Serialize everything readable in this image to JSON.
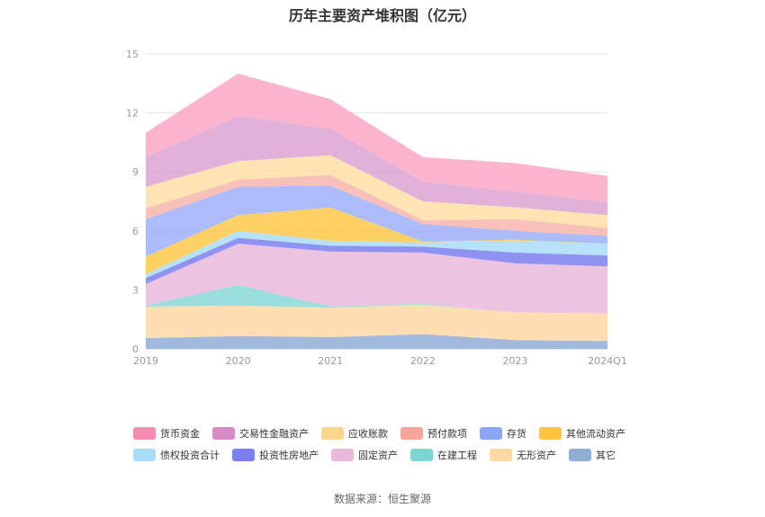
{
  "chart_data": {
    "type": "area",
    "title": "历年主要资产堆积图（亿元）",
    "source": "数据来源：恒生聚源",
    "categories": [
      "2019",
      "2020",
      "2021",
      "2022",
      "2023",
      "2024Q1"
    ],
    "y_ticks": [
      "0",
      "3",
      "6",
      "9",
      "12",
      "15"
    ],
    "ylim": [
      0,
      15
    ],
    "grid": true,
    "legend_position": "bottom",
    "stacked": true,
    "series": [
      {
        "name": "其它",
        "color": "#8fadd6",
        "values": [
          0.55,
          0.65,
          0.6,
          0.75,
          0.45,
          0.4
        ]
      },
      {
        "name": "无形资产",
        "color": "#ffd9a3",
        "values": [
          1.6,
          1.55,
          1.5,
          1.5,
          1.4,
          1.4
        ]
      },
      {
        "name": "在建工程",
        "color": "#8ad8d8",
        "values": [
          0.05,
          1.05,
          0.05,
          0.05,
          0.0,
          0.0
        ]
      },
      {
        "name": "固定资产",
        "color": "#e9b9dc",
        "values": [
          1.1,
          2.1,
          2.8,
          2.6,
          2.5,
          2.4
        ]
      },
      {
        "name": "投资性房地产",
        "color": "#7b7fef",
        "values": [
          0.3,
          0.3,
          0.3,
          0.3,
          0.55,
          0.55
        ]
      },
      {
        "name": "债权投资合计",
        "color": "#a8ddf7",
        "values": [
          0.2,
          0.35,
          0.25,
          0.2,
          0.6,
          0.6
        ]
      },
      {
        "name": "其他流动资产",
        "color": "#ffc94a",
        "values": [
          0.9,
          0.8,
          1.7,
          0.05,
          0.05,
          0.0
        ]
      },
      {
        "name": "存货",
        "color": "#9db0fa",
        "values": [
          1.9,
          1.45,
          1.1,
          0.9,
          0.45,
          0.4
        ]
      },
      {
        "name": "预付款项",
        "color": "#f7b5ad",
        "values": [
          0.55,
          0.35,
          0.55,
          0.2,
          0.6,
          0.4
        ]
      },
      {
        "name": "应收账款",
        "color": "#ffdfa6",
        "values": [
          1.1,
          0.95,
          1.0,
          0.95,
          0.6,
          0.65
        ]
      },
      {
        "name": "交易性金融资产",
        "color": "#dca3d2",
        "values": [
          1.5,
          2.3,
          1.35,
          1.0,
          0.8,
          0.65
        ]
      },
      {
        "name": "货币资金",
        "color": "#fca7c6",
        "values": [
          1.25,
          2.15,
          1.5,
          1.25,
          1.45,
          1.35
        ]
      }
    ],
    "legend_order": [
      "货币资金",
      "交易性金融资产",
      "应收账款",
      "预付款项",
      "存货",
      "其他流动资产",
      "债权投资合计",
      "投资性房地产",
      "固定资产",
      "在建工程",
      "无形资产",
      "其它"
    ],
    "legend_colors": [
      "#f78bb0",
      "#d68bc7",
      "#ffd48f",
      "#f6a59b",
      "#8ca6f7",
      "#ffc43d",
      "#a8ddf7",
      "#7b7fef",
      "#e9b9dc",
      "#7fd3d3",
      "#ffd9a3",
      "#8fadd6"
    ]
  }
}
